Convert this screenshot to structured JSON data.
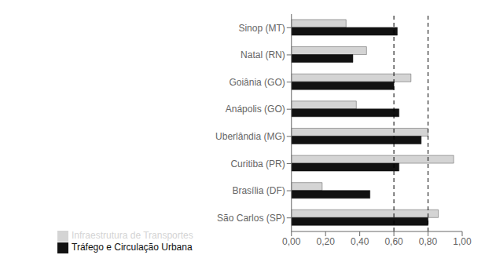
{
  "chart_data": {
    "type": "bar",
    "orientation": "horizontal",
    "categories": [
      "Sinop (MT)",
      "Natal (RN)",
      "Goiânia (GO)",
      "Anápolis (GO)",
      "Uberlândia (MG)",
      "Curitiba (PR)",
      "Brasília (DF)",
      "São Carlos (SP)"
    ],
    "series": [
      {
        "name": "Infraestrutura de Transportes",
        "color": "#d4d4d4",
        "values": [
          0.32,
          0.44,
          0.7,
          0.38,
          0.8,
          0.95,
          0.18,
          0.86
        ]
      },
      {
        "name": "Tráfego e Circulação Urbana",
        "color": "#111111",
        "values": [
          0.62,
          0.36,
          0.6,
          0.63,
          0.76,
          0.63,
          0.46,
          0.8
        ]
      }
    ],
    "xlim": [
      0.0,
      1.0
    ],
    "xticks": [
      {
        "value": 0.0,
        "label": "0,00"
      },
      {
        "value": 0.2,
        "label": "0,20"
      },
      {
        "value": 0.4,
        "label": "0,40"
      },
      {
        "value": 0.6,
        "label": "0,60"
      },
      {
        "value": 0.8,
        "label": "0,80"
      },
      {
        "value": 1.0,
        "label": "1,00"
      }
    ],
    "reference_lines": [
      0.6,
      0.8
    ],
    "grid": false,
    "legend": "bottom"
  }
}
